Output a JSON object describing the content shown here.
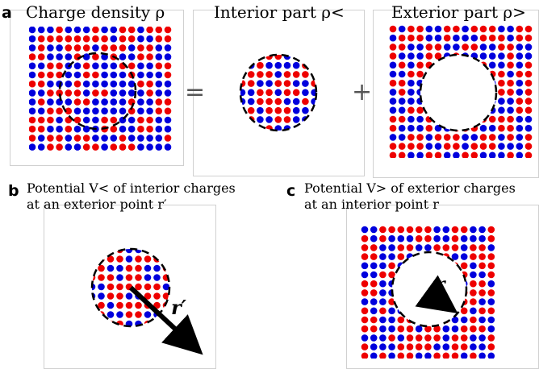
{
  "panel_a": {
    "label": "a",
    "title_left": "Charge density ρ",
    "title_middle": "Interior part ρ<",
    "title_right": "Exterior part ρ>",
    "equals": "=",
    "plus": "+"
  },
  "panel_b": {
    "label": "b",
    "line1": "Potential V< of interior charges",
    "line2": "at an exterior point r′",
    "vector_label": "r′"
  },
  "panel_c": {
    "label": "c",
    "line1": "Potential V> of exterior charges",
    "line2": "at an interior point r",
    "vector_label": "r"
  },
  "colors": {
    "positive": "#ee0000",
    "negative": "#0000dd",
    "frame": "#d0d0d0",
    "boundary": "#000000"
  }
}
